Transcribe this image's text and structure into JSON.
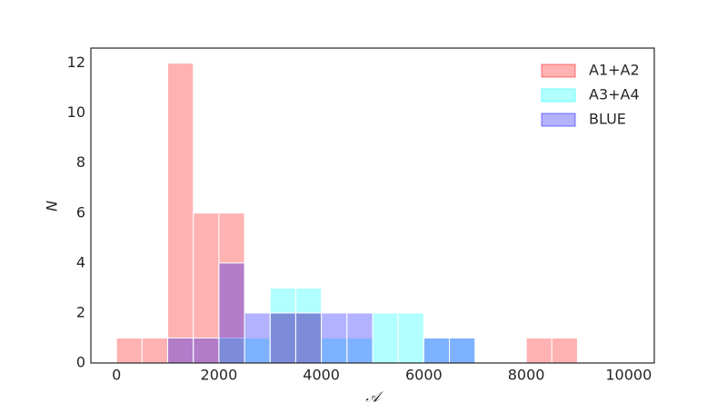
{
  "chart_data": {
    "type": "histogram",
    "xlabel": "𝒜",
    "ylabel": "N",
    "xlim": [
      -500,
      10500
    ],
    "ylim": [
      0,
      12.6
    ],
    "xticks": [
      0,
      2000,
      4000,
      6000,
      8000,
      10000
    ],
    "yticks": [
      0,
      2,
      4,
      6,
      8,
      10,
      12
    ],
    "legend": "upper right",
    "opacity": 0.3,
    "series": [
      {
        "name": "A1+A2",
        "color": "#ff0000",
        "bins": [
          0,
          500,
          1000,
          1500,
          2000,
          2500,
          3000,
          3500,
          4000,
          4500,
          5000,
          5500,
          6000,
          6500,
          7000,
          7500,
          8000,
          8500,
          9000
        ],
        "counts": [
          1,
          1,
          12,
          6,
          6,
          0,
          2,
          2,
          0,
          0,
          0,
          0,
          0,
          0,
          0,
          0,
          1,
          1
        ]
      },
      {
        "name": "A3+A4",
        "color": "#00ffff",
        "bins": [
          2000,
          2500,
          3000,
          3500,
          4000,
          4500,
          5000,
          5500,
          6000,
          6500,
          7000
        ],
        "counts": [
          1,
          1,
          3,
          3,
          1,
          1,
          2,
          2,
          1,
          1
        ]
      },
      {
        "name": "BLUE",
        "color": "#0000ff",
        "bins": [
          1000,
          1500,
          2000,
          2500,
          3000,
          3500,
          4000,
          4500,
          5000,
          5500,
          6000,
          6500,
          7000
        ],
        "counts": [
          1,
          1,
          4,
          2,
          2,
          2,
          2,
          2,
          0,
          0,
          1,
          1
        ]
      }
    ]
  }
}
